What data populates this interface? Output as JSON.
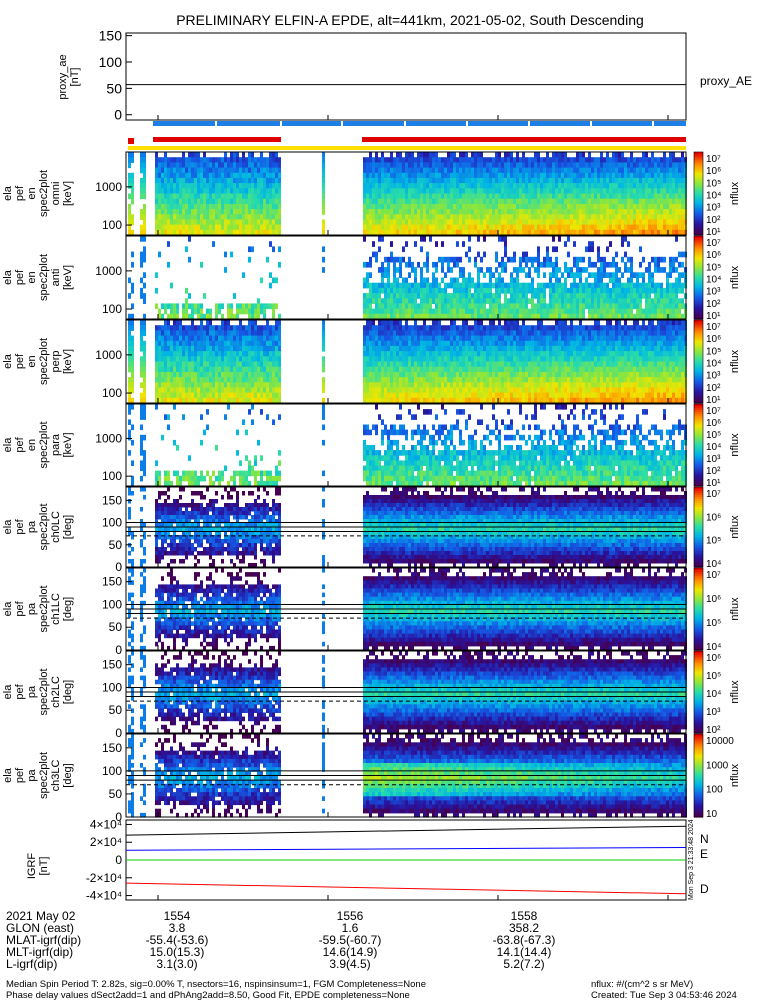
{
  "title": "PRELIMINARY ELFIN-A EPDE, alt=441km, 2021-05-02, South Descending",
  "colors": {
    "magenta": "#ff00ff",
    "blue_bar": "#1e80e6",
    "red": "#e00000",
    "yellow": "#ffe000",
    "N": "#0000ff",
    "E": "#00cc00",
    "D": "#ff0000"
  },
  "chart_data": [
    {
      "id": "proxy_ae",
      "type": "line",
      "ylabel": [
        "proxy_ae",
        "[nT]"
      ],
      "ylim": [
        -10,
        155
      ],
      "yticks": [
        0,
        50,
        100,
        150
      ],
      "series": [
        {
          "name": "proxy_AE",
          "values": [
            57,
            57
          ]
        }
      ]
    },
    {
      "id": "omni_en",
      "type": "heatmap",
      "ylabel": [
        "ela",
        "pef",
        "en",
        "spec2plot",
        "omni",
        "[keV]"
      ],
      "yticks": [
        "100",
        "1000"
      ],
      "colorbar": {
        "label": "nflux",
        "ticks": [
          "10¹",
          "10²",
          "10³",
          "10⁴",
          "10⁵",
          "10⁶",
          "10⁷"
        ]
      }
    },
    {
      "id": "para_en",
      "type": "heatmap",
      "ylabel": [
        "ela",
        "pef",
        "en",
        "spec2plot",
        "anti",
        "[keV]"
      ],
      "yticks": [
        "100",
        "1000"
      ],
      "colorbar": {
        "label": "nflux",
        "ticks": [
          "10¹",
          "10²",
          "10³",
          "10⁴",
          "10⁵",
          "10⁶",
          "10⁷"
        ]
      }
    },
    {
      "id": "perp_en",
      "type": "heatmap",
      "ylabel": [
        "ela",
        "pef",
        "en",
        "spec2plot",
        "perp",
        "[keV]"
      ],
      "yticks": [
        "100",
        "1000"
      ],
      "colorbar": {
        "label": "nflux",
        "ticks": [
          "10¹",
          "10²",
          "10³",
          "10⁴",
          "10⁵",
          "10⁶",
          "10⁷"
        ]
      }
    },
    {
      "id": "anti_en",
      "type": "heatmap",
      "ylabel": [
        "ela",
        "pef",
        "en",
        "spec2plot",
        "para",
        "[keV]"
      ],
      "yticks": [
        "100",
        "1000"
      ],
      "colorbar": {
        "label": "nflux",
        "ticks": [
          "10¹",
          "10²",
          "10³",
          "10⁴",
          "10⁵",
          "10⁶",
          "10⁷"
        ]
      }
    },
    {
      "id": "pa_ch0",
      "type": "heatmap",
      "ylabel": [
        "ela",
        "pef",
        "pa",
        "spec2plot",
        "ch0LC",
        "[deg]"
      ],
      "yticks": [
        "0",
        "50",
        "100",
        "150"
      ],
      "colorbar": {
        "label": "nflux",
        "ticks": [
          "10⁴",
          "10⁵",
          "10⁶",
          "10⁷"
        ]
      }
    },
    {
      "id": "pa_ch1",
      "type": "heatmap",
      "ylabel": [
        "ela",
        "pef",
        "pa",
        "spec2plot",
        "ch1LC",
        "[deg]"
      ],
      "yticks": [
        "0",
        "50",
        "100",
        "150"
      ],
      "colorbar": {
        "label": "nflux",
        "ticks": [
          "10⁴",
          "10⁵",
          "10⁶",
          "10⁷"
        ]
      }
    },
    {
      "id": "pa_ch2",
      "type": "heatmap",
      "ylabel": [
        "ela",
        "pef",
        "pa",
        "spec2plot",
        "ch2LC",
        "[deg]"
      ],
      "yticks": [
        "0",
        "50",
        "100",
        "150"
      ],
      "colorbar": {
        "label": "nflux",
        "ticks": [
          "10²",
          "10³",
          "10⁴",
          "10⁵",
          "10⁶"
        ]
      }
    },
    {
      "id": "pa_ch3",
      "type": "heatmap",
      "ylabel": [
        "ela",
        "pef",
        "pa",
        "spec2plot",
        "ch3LC",
        "[deg]"
      ],
      "yticks": [
        "0",
        "50",
        "100",
        "150"
      ],
      "colorbar": {
        "label": "nflux",
        "ticks": [
          "10",
          "100",
          "1000",
          "10000"
        ]
      }
    },
    {
      "id": "igrf",
      "type": "line",
      "ylabel": [
        "IGRF",
        "[nT]"
      ],
      "ylim": [
        -45000,
        45000
      ],
      "yticks": [
        "-4×10⁴",
        "-2×10⁴",
        "0",
        "2×10⁴",
        "4×10⁴"
      ],
      "series": [
        {
          "name": "N",
          "values": [
            11000,
            14000
          ]
        },
        {
          "name": "E",
          "values": [
            0,
            0
          ]
        },
        {
          "name": "D",
          "values": [
            -26000,
            -38000
          ]
        }
      ]
    }
  ],
  "x_axis": {
    "ticks": [
      "1554",
      "1556",
      "1558"
    ],
    "rows": [
      {
        "label": "2021 May 02",
        "values": [
          "1554",
          "1556",
          "1558"
        ]
      },
      {
        "label": "GLON (east)",
        "values": [
          "3.8",
          "1.6",
          "358.2"
        ]
      },
      {
        "label": "MLAT-igrf(dip)",
        "values": [
          "-55.4(-53.6)",
          "-59.5(-60.7)",
          "-63.8(-67.3)"
        ]
      },
      {
        "label": "MLT-igrf(dip)",
        "values": [
          "15.0(15.3)",
          "14.6(14.9)",
          "14.1(14.4)"
        ]
      },
      {
        "label": "L-igrf(dip)",
        "values": [
          "3.1(3.0)",
          "3.9(4.5)",
          "5.2(7.2)"
        ]
      }
    ]
  },
  "footer": {
    "line1": "Median Spin Period T: 2.82s, sig=0.00% T, nsectors=16, nspinsinsum=1, FGM Completeness=None",
    "line2": "Phase delay values dSect2add=1 and dPhAng2add=8.50, Good Fit, EPDE completeness=None",
    "units": "nflux: #/(cm^2 s sr MeV)",
    "created": "Created: Tue Sep  3 04:53:46 2024",
    "side_stamp": "Mon Sep  3 21:33:48 2024"
  }
}
